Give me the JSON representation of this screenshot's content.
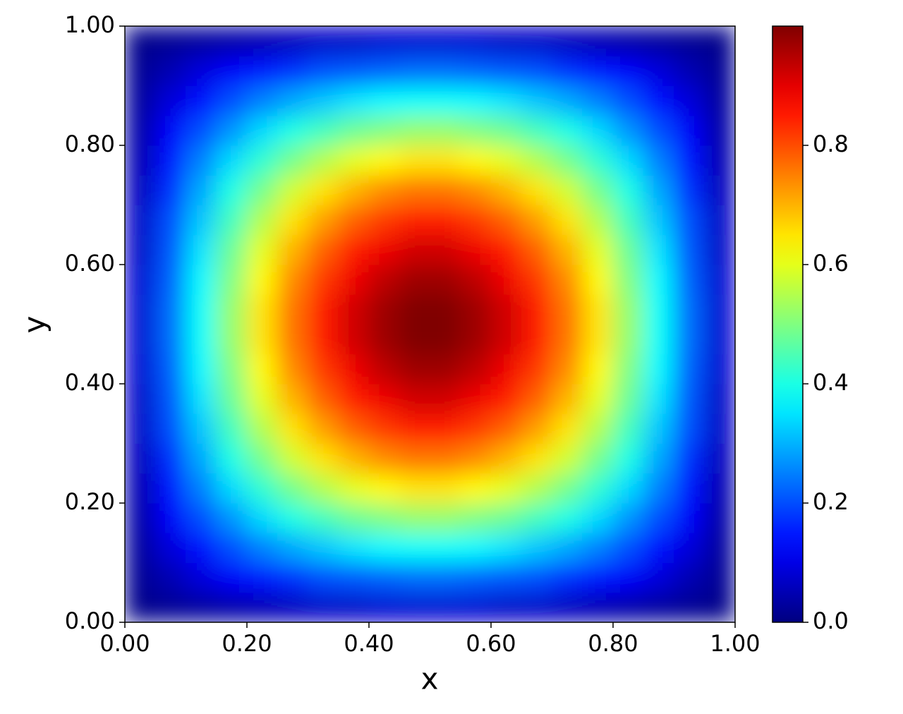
{
  "chart_data": {
    "type": "heatmap",
    "colormap": "jet",
    "xlabel": "x",
    "ylabel": "y",
    "xlim": [
      0,
      1
    ],
    "ylim": [
      0,
      1
    ],
    "xticks": [
      {
        "value": 0,
        "label": "0.00"
      },
      {
        "value": 0.2,
        "label": "0.20"
      },
      {
        "value": 0.4,
        "label": "0.40"
      },
      {
        "value": 0.6,
        "label": "0.60"
      },
      {
        "value": 0.8,
        "label": "0.80"
      },
      {
        "value": 1,
        "label": "1.00"
      }
    ],
    "yticks": [
      {
        "value": 0,
        "label": "0.00"
      },
      {
        "value": 0.2,
        "label": "0.20"
      },
      {
        "value": 0.4,
        "label": "0.40"
      },
      {
        "value": 0.6,
        "label": "0.60"
      },
      {
        "value": 0.8,
        "label": "0.80"
      },
      {
        "value": 1,
        "label": "1.00"
      }
    ],
    "clim": [
      0,
      1
    ],
    "cticks": [
      {
        "value": 0,
        "label": "0.0"
      },
      0.2,
      0.4,
      0.6,
      0.8
    ],
    "z": [
      [
        0.01,
        0.02,
        0.03,
        0.04,
        0.05,
        0.06,
        0.07,
        0.07,
        0.08,
        0.08,
        0.08,
        0.08,
        0.07,
        0.07,
        0.06,
        0.05,
        0.04,
        0.03,
        0.02,
        0.01
      ],
      [
        0.02,
        0.05,
        0.09,
        0.12,
        0.15,
        0.17,
        0.2,
        0.21,
        0.22,
        0.23,
        0.23,
        0.22,
        0.21,
        0.2,
        0.17,
        0.15,
        0.12,
        0.09,
        0.05,
        0.02
      ],
      [
        0.03,
        0.09,
        0.14,
        0.2,
        0.25,
        0.29,
        0.32,
        0.35,
        0.37,
        0.38,
        0.38,
        0.37,
        0.35,
        0.32,
        0.29,
        0.25,
        0.2,
        0.14,
        0.09,
        0.03
      ],
      [
        0.04,
        0.12,
        0.2,
        0.27,
        0.34,
        0.4,
        0.44,
        0.48,
        0.5,
        0.52,
        0.52,
        0.5,
        0.48,
        0.44,
        0.4,
        0.34,
        0.27,
        0.2,
        0.12,
        0.04
      ],
      [
        0.05,
        0.15,
        0.25,
        0.34,
        0.42,
        0.49,
        0.55,
        0.6,
        0.63,
        0.65,
        0.65,
        0.63,
        0.6,
        0.55,
        0.49,
        0.42,
        0.34,
        0.25,
        0.15,
        0.05
      ],
      [
        0.06,
        0.17,
        0.29,
        0.4,
        0.49,
        0.58,
        0.65,
        0.7,
        0.74,
        0.76,
        0.76,
        0.74,
        0.7,
        0.65,
        0.58,
        0.49,
        0.4,
        0.29,
        0.17,
        0.06
      ],
      [
        0.07,
        0.2,
        0.32,
        0.44,
        0.55,
        0.65,
        0.72,
        0.78,
        0.82,
        0.85,
        0.85,
        0.82,
        0.78,
        0.72,
        0.65,
        0.55,
        0.44,
        0.32,
        0.2,
        0.07
      ],
      [
        0.07,
        0.21,
        0.35,
        0.48,
        0.6,
        0.7,
        0.78,
        0.85,
        0.89,
        0.92,
        0.92,
        0.89,
        0.85,
        0.78,
        0.7,
        0.6,
        0.48,
        0.35,
        0.21,
        0.07
      ],
      [
        0.08,
        0.22,
        0.37,
        0.5,
        0.63,
        0.74,
        0.82,
        0.89,
        0.94,
        0.97,
        0.97,
        0.94,
        0.89,
        0.82,
        0.74,
        0.63,
        0.5,
        0.37,
        0.22,
        0.08
      ],
      [
        0.08,
        0.23,
        0.38,
        0.52,
        0.65,
        0.76,
        0.85,
        0.92,
        0.97,
        1.0,
        1.0,
        0.97,
        0.92,
        0.85,
        0.76,
        0.65,
        0.52,
        0.38,
        0.23,
        0.08
      ],
      [
        0.08,
        0.23,
        0.38,
        0.52,
        0.65,
        0.76,
        0.85,
        0.92,
        0.97,
        1.0,
        1.0,
        0.97,
        0.92,
        0.85,
        0.76,
        0.65,
        0.52,
        0.38,
        0.23,
        0.08
      ],
      [
        0.08,
        0.22,
        0.37,
        0.5,
        0.63,
        0.74,
        0.82,
        0.89,
        0.94,
        0.97,
        0.97,
        0.94,
        0.89,
        0.82,
        0.74,
        0.63,
        0.5,
        0.37,
        0.22,
        0.08
      ],
      [
        0.07,
        0.21,
        0.35,
        0.48,
        0.6,
        0.7,
        0.78,
        0.85,
        0.89,
        0.92,
        0.92,
        0.89,
        0.85,
        0.78,
        0.7,
        0.6,
        0.48,
        0.35,
        0.21,
        0.07
      ],
      [
        0.07,
        0.2,
        0.32,
        0.44,
        0.55,
        0.65,
        0.72,
        0.78,
        0.82,
        0.85,
        0.85,
        0.82,
        0.78,
        0.72,
        0.65,
        0.55,
        0.44,
        0.32,
        0.2,
        0.07
      ],
      [
        0.06,
        0.17,
        0.29,
        0.4,
        0.49,
        0.58,
        0.65,
        0.7,
        0.74,
        0.76,
        0.76,
        0.74,
        0.7,
        0.65,
        0.58,
        0.49,
        0.4,
        0.29,
        0.17,
        0.06
      ],
      [
        0.05,
        0.15,
        0.25,
        0.34,
        0.42,
        0.49,
        0.55,
        0.6,
        0.63,
        0.65,
        0.65,
        0.63,
        0.6,
        0.55,
        0.49,
        0.42,
        0.34,
        0.25,
        0.15,
        0.05
      ],
      [
        0.04,
        0.12,
        0.2,
        0.27,
        0.34,
        0.4,
        0.44,
        0.48,
        0.5,
        0.52,
        0.52,
        0.5,
        0.48,
        0.44,
        0.4,
        0.34,
        0.27,
        0.2,
        0.12,
        0.04
      ],
      [
        0.03,
        0.09,
        0.14,
        0.2,
        0.25,
        0.29,
        0.32,
        0.35,
        0.37,
        0.38,
        0.38,
        0.37,
        0.35,
        0.32,
        0.29,
        0.25,
        0.2,
        0.14,
        0.09,
        0.03
      ],
      [
        0.02,
        0.05,
        0.09,
        0.12,
        0.15,
        0.17,
        0.2,
        0.21,
        0.22,
        0.23,
        0.23,
        0.22,
        0.21,
        0.2,
        0.17,
        0.15,
        0.12,
        0.09,
        0.05,
        0.02
      ],
      [
        0.01,
        0.02,
        0.03,
        0.04,
        0.05,
        0.06,
        0.07,
        0.07,
        0.08,
        0.08,
        0.08,
        0.08,
        0.07,
        0.07,
        0.06,
        0.05,
        0.04,
        0.03,
        0.02,
        0.01
      ]
    ]
  }
}
